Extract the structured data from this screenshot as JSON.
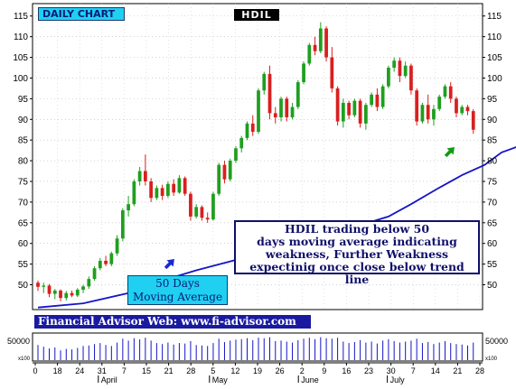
{
  "header": {
    "chart_label": "DAILY CHART",
    "ticker": "HDIL"
  },
  "annotation": {
    "lines": [
      "HDIL trading below 50",
      "days moving average indicating",
      "weakness, Further Weakness",
      "expectinig once close below  trend line"
    ]
  },
  "ma_callout": {
    "lines": [
      "50 Days",
      "Moving Average"
    ]
  },
  "footer_banner": "Financial Advisor Web: www.fi-advisor.com",
  "colors": {
    "up": "#1f9f1f",
    "down": "#d91f1f",
    "ma_line": "#1414c8",
    "trend_line": "#139a13",
    "volume": "#1414c8",
    "callout_bg": "#1fd0f0",
    "banner_bg": "#1a1aa0",
    "arrow_up_blue": "#1a2ad0",
    "arrow_up_green": "#139a13"
  },
  "chart_data": {
    "type": "candlestick",
    "y_axis": {
      "ticks": [
        50,
        55,
        60,
        65,
        70,
        75,
        80,
        85,
        90,
        95,
        100,
        105,
        110,
        115
      ],
      "range": [
        44,
        118
      ]
    },
    "x_axis": {
      "day_labels": [
        "0",
        "18",
        "24",
        "31",
        "7",
        "15",
        "21",
        "28",
        "5",
        "12",
        "19",
        "26",
        "2",
        "9",
        "16",
        "23",
        "30",
        "7",
        "14",
        "21",
        "28"
      ],
      "month_labels": [
        {
          "label": "April",
          "at_tick": 3
        },
        {
          "label": "May",
          "at_tick": 8
        },
        {
          "label": "June",
          "at_tick": 12
        },
        {
          "label": "July",
          "at_tick": 16
        }
      ]
    },
    "volume_axis": {
      "label": "50000",
      "scale_label": "x100"
    },
    "candles": [
      [
        50.5,
        51.0,
        48.5,
        49.5
      ],
      [
        49.5,
        50.5,
        48.0,
        49.8
      ],
      [
        49.8,
        50.2,
        47.0,
        47.8
      ],
      [
        47.8,
        49.0,
        46.5,
        48.6
      ],
      [
        48.6,
        48.9,
        46.0,
        46.8
      ],
      [
        46.8,
        48.5,
        46.2,
        48.0
      ],
      [
        48.0,
        48.6,
        47.0,
        47.4
      ],
      [
        47.4,
        49.2,
        47.0,
        48.8
      ],
      [
        48.8,
        50.0,
        48.0,
        49.6
      ],
      [
        49.6,
        52.0,
        49.0,
        51.4
      ],
      [
        51.4,
        54.5,
        51.0,
        54.0
      ],
      [
        54.0,
        56.5,
        53.5,
        55.8
      ],
      [
        55.8,
        57.0,
        54.5,
        55.0
      ],
      [
        55.0,
        58.0,
        54.5,
        57.6
      ],
      [
        57.6,
        62.0,
        57.0,
        61.2
      ],
      [
        61.2,
        68.5,
        60.5,
        68.0
      ],
      [
        68.0,
        71.5,
        66.5,
        69.5
      ],
      [
        69.5,
        75.5,
        69.0,
        75.0
      ],
      [
        75.0,
        78.5,
        74.0,
        77.5
      ],
      [
        77.5,
        81.5,
        74.0,
        75.0
      ],
      [
        75.0,
        75.8,
        70.0,
        71.0
      ],
      [
        71.0,
        74.0,
        70.5,
        73.4
      ],
      [
        73.4,
        74.2,
        70.5,
        71.5
      ],
      [
        71.5,
        75.0,
        71.0,
        74.4
      ],
      [
        74.4,
        75.5,
        71.5,
        72.3
      ],
      [
        72.3,
        76.5,
        72.0,
        75.8
      ],
      [
        75.8,
        76.2,
        71.5,
        72.0
      ],
      [
        72.0,
        72.5,
        65.5,
        66.5
      ],
      [
        66.5,
        69.5,
        66.0,
        68.8
      ],
      [
        68.8,
        69.2,
        65.5,
        66.2
      ],
      [
        66.2,
        67.5,
        65.0,
        65.8
      ],
      [
        65.8,
        72.5,
        65.5,
        72.0
      ],
      [
        72.0,
        79.5,
        71.5,
        79.0
      ],
      [
        79.0,
        80.0,
        74.5,
        75.5
      ],
      [
        75.5,
        80.5,
        75.0,
        80.0
      ],
      [
        80.0,
        83.5,
        79.5,
        83.0
      ],
      [
        83.0,
        86.0,
        82.0,
        85.5
      ],
      [
        85.5,
        89.5,
        85.0,
        89.0
      ],
      [
        89.0,
        91.0,
        86.0,
        87.0
      ],
      [
        87.0,
        97.5,
        86.5,
        97.0
      ],
      [
        97.0,
        101.5,
        96.0,
        101.0
      ],
      [
        101.0,
        103.0,
        90.0,
        91.5
      ],
      [
        91.5,
        93.0,
        89.0,
        90.5
      ],
      [
        90.5,
        95.5,
        89.5,
        95.0
      ],
      [
        95.0,
        95.5,
        89.5,
        90.5
      ],
      [
        90.5,
        94.0,
        90.0,
        93.0
      ],
      [
        93.0,
        99.5,
        92.5,
        99.0
      ],
      [
        99.0,
        104.0,
        98.5,
        103.5
      ],
      [
        103.5,
        108.5,
        103.0,
        108.0
      ],
      [
        108.0,
        110.0,
        105.5,
        106.5
      ],
      [
        106.5,
        113.5,
        106.0,
        112.0
      ],
      [
        112.0,
        112.5,
        104.0,
        105.0
      ],
      [
        105.0,
        107.5,
        96.5,
        97.5
      ],
      [
        97.5,
        98.0,
        88.5,
        89.5
      ],
      [
        89.5,
        95.0,
        88.0,
        94.0
      ],
      [
        94.0,
        94.5,
        90.0,
        91.0
      ],
      [
        91.0,
        95.0,
        90.5,
        94.5
      ],
      [
        94.5,
        95.0,
        88.0,
        89.0
      ],
      [
        89.0,
        94.0,
        87.5,
        93.5
      ],
      [
        93.5,
        96.5,
        93.0,
        96.0
      ],
      [
        96.0,
        97.5,
        92.0,
        93.0
      ],
      [
        93.0,
        98.5,
        92.5,
        98.0
      ],
      [
        98.0,
        103.0,
        97.5,
        102.5
      ],
      [
        102.5,
        105.0,
        101.5,
        104.2
      ],
      [
        104.2,
        105.0,
        99.0,
        100.5
      ],
      [
        100.5,
        104.0,
        100.0,
        103.0
      ],
      [
        103.0,
        103.5,
        96.0,
        97.0
      ],
      [
        97.0,
        97.5,
        88.5,
        89.5
      ],
      [
        89.5,
        94.0,
        89.0,
        93.5
      ],
      [
        93.5,
        96.0,
        89.0,
        90.0
      ],
      [
        90.0,
        93.5,
        88.5,
        92.5
      ],
      [
        92.5,
        96.0,
        92.0,
        95.5
      ],
      [
        95.5,
        98.5,
        95.0,
        98.0
      ],
      [
        98.0,
        99.0,
        94.0,
        95.0
      ],
      [
        95.0,
        95.5,
        90.5,
        91.5
      ],
      [
        91.5,
        93.5,
        91.0,
        93.0
      ],
      [
        93.0,
        93.5,
        91.0,
        92.0
      ],
      [
        92.0,
        92.5,
        86.5,
        87.5
      ]
    ],
    "moving_average_50": [
      [
        0,
        44.5
      ],
      [
        8,
        45.5
      ],
      [
        16,
        48
      ],
      [
        22,
        51
      ],
      [
        28,
        53.5
      ],
      [
        35,
        56
      ],
      [
        42,
        59.5
      ],
      [
        50,
        62
      ],
      [
        56,
        64
      ],
      [
        62,
        66.5
      ],
      [
        66,
        69.5
      ],
      [
        71,
        73.5
      ],
      [
        75,
        76.5
      ],
      [
        79,
        79
      ],
      [
        82,
        82
      ],
      [
        86,
        84
      ],
      [
        90,
        85
      ],
      [
        96,
        86
      ],
      [
        104,
        87.5
      ],
      [
        108,
        88.5
      ],
      [
        116,
        89
      ],
      [
        122,
        89.2
      ],
      [
        127,
        89.8
      ],
      [
        132,
        90.5
      ],
      [
        137,
        91
      ],
      [
        142,
        90.8
      ]
    ],
    "trend_line": {
      "from": [
        91,
        86.5
      ],
      "to": [
        148,
        86.5
      ]
    },
    "volume": [
      62,
      55,
      48,
      52,
      40,
      46,
      44,
      50,
      58,
      60,
      66,
      70,
      62,
      58,
      72,
      88,
      80,
      90,
      85,
      92,
      80,
      70,
      66,
      72,
      64,
      70,
      68,
      78,
      62,
      60,
      58,
      70,
      88,
      74,
      80,
      84,
      86,
      90,
      82,
      92,
      90,
      94,
      78,
      80,
      76,
      72,
      82,
      88,
      92,
      86,
      94,
      90,
      88,
      92,
      76,
      70,
      74,
      82,
      72,
      76,
      68,
      80,
      86,
      78,
      72,
      76,
      80,
      88,
      70,
      74,
      66,
      72,
      78,
      70,
      66,
      64,
      60,
      72
    ]
  }
}
